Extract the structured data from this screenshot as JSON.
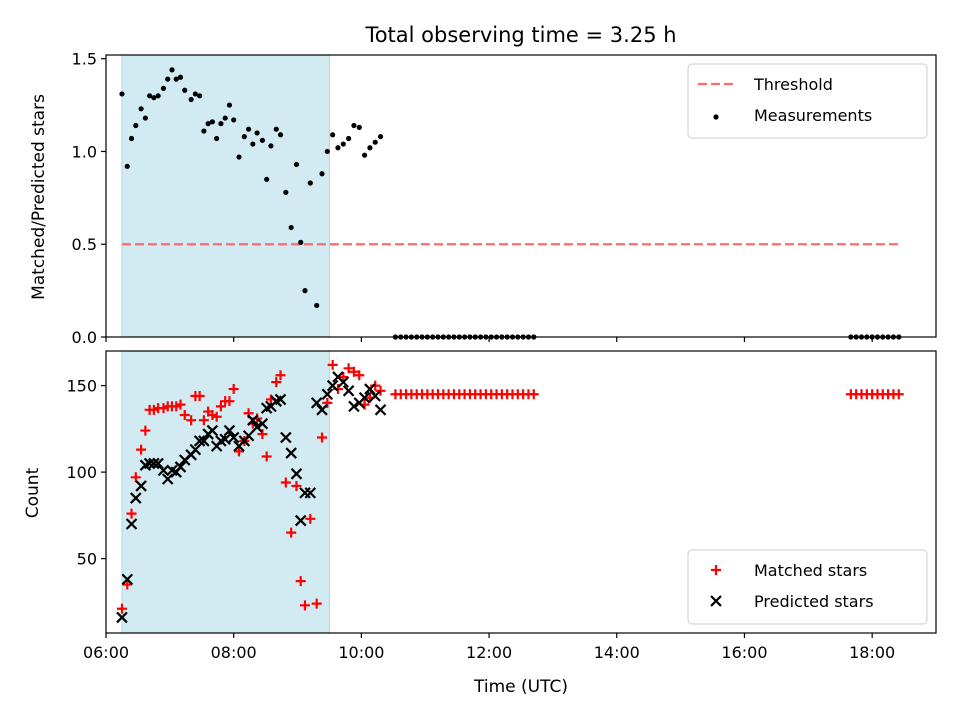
{
  "figure": {
    "title": "Total observing time = 3.25 h"
  },
  "chart_data": [
    {
      "type": "scatter",
      "ylabel": "Matched/Predicted stars",
      "xlim": [
        "06:00",
        "19:00"
      ],
      "ylim": [
        0,
        1.52
      ],
      "yticks": [
        "0.0",
        "0.5",
        "1.0",
        "1.5"
      ],
      "ytick_values": [
        0,
        0.5,
        1.0,
        1.5
      ],
      "shaded_span": [
        "06:15",
        "09:30"
      ],
      "shaded_color": "#add8e6",
      "threshold": {
        "name": "Threshold",
        "value": 0.5,
        "x_range": [
          "06:15",
          "18:25"
        ],
        "color": "#ff6b6b"
      },
      "legend_position": "top-right",
      "series": [
        {
          "name": "Measurements",
          "color": "#000000",
          "marker": "dot",
          "points": [
            [
              "06:15",
              1.31
            ],
            [
              "06:20",
              0.92
            ],
            [
              "06:24",
              1.07
            ],
            [
              "06:28",
              1.14
            ],
            [
              "06:33",
              1.23
            ],
            [
              "06:37",
              1.18
            ],
            [
              "06:41",
              1.3
            ],
            [
              "06:45",
              1.29
            ],
            [
              "06:49",
              1.3
            ],
            [
              "06:54",
              1.34
            ],
            [
              "06:58",
              1.39
            ],
            [
              "07:02",
              1.44
            ],
            [
              "07:06",
              1.39
            ],
            [
              "07:10",
              1.4
            ],
            [
              "07:14",
              1.33
            ],
            [
              "07:20",
              1.28
            ],
            [
              "07:24",
              1.31
            ],
            [
              "07:28",
              1.3
            ],
            [
              "07:32",
              1.11
            ],
            [
              "07:36",
              1.15
            ],
            [
              "07:40",
              1.16
            ],
            [
              "07:44",
              1.07
            ],
            [
              "07:48",
              1.15
            ],
            [
              "07:52",
              1.18
            ],
            [
              "07:56",
              1.25
            ],
            [
              "08:00",
              1.17
            ],
            [
              "08:05",
              0.97
            ],
            [
              "08:10",
              1.08
            ],
            [
              "08:14",
              1.12
            ],
            [
              "08:18",
              1.04
            ],
            [
              "08:22",
              1.1
            ],
            [
              "08:27",
              1.06
            ],
            [
              "08:31",
              0.85
            ],
            [
              "08:35",
              1.03
            ],
            [
              "08:40",
              1.12
            ],
            [
              "08:44",
              1.09
            ],
            [
              "08:49",
              0.78
            ],
            [
              "08:54",
              0.59
            ],
            [
              "08:59",
              0.93
            ],
            [
              "09:03",
              0.51
            ],
            [
              "09:07",
              0.25
            ],
            [
              "09:12",
              0.83
            ],
            [
              "09:18",
              0.17
            ],
            [
              "09:23",
              0.88
            ],
            [
              "09:28",
              1.0
            ],
            [
              "09:33",
              1.09
            ],
            [
              "09:38",
              1.02
            ],
            [
              "09:43",
              1.04
            ],
            [
              "09:48",
              1.07
            ],
            [
              "09:53",
              1.14
            ],
            [
              "09:58",
              1.13
            ],
            [
              "10:03",
              0.98
            ],
            [
              "10:08",
              1.02
            ],
            [
              "10:13",
              1.05
            ],
            [
              "10:18",
              1.08
            ],
            [
              "10:32",
              0
            ],
            [
              "10:37",
              0
            ],
            [
              "10:42",
              0
            ],
            [
              "10:47",
              0
            ],
            [
              "10:52",
              0
            ],
            [
              "10:57",
              0
            ],
            [
              "11:02",
              0
            ],
            [
              "11:07",
              0
            ],
            [
              "11:12",
              0
            ],
            [
              "11:17",
              0
            ],
            [
              "11:22",
              0
            ],
            [
              "11:27",
              0
            ],
            [
              "11:32",
              0
            ],
            [
              "11:37",
              0
            ],
            [
              "11:42",
              0
            ],
            [
              "11:47",
              0
            ],
            [
              "11:52",
              0
            ],
            [
              "11:57",
              0
            ],
            [
              "12:02",
              0
            ],
            [
              "12:07",
              0
            ],
            [
              "12:12",
              0
            ],
            [
              "12:17",
              0
            ],
            [
              "12:22",
              0
            ],
            [
              "12:27",
              0
            ],
            [
              "12:32",
              0
            ],
            [
              "12:37",
              0
            ],
            [
              "12:42",
              0
            ],
            [
              "17:40",
              0
            ],
            [
              "17:45",
              0
            ],
            [
              "17:50",
              0
            ],
            [
              "17:55",
              0
            ],
            [
              "18:00",
              0
            ],
            [
              "18:05",
              0
            ],
            [
              "18:10",
              0
            ],
            [
              "18:15",
              0
            ],
            [
              "18:20",
              0
            ],
            [
              "18:25",
              0
            ]
          ]
        }
      ]
    },
    {
      "type": "scatter",
      "xlabel": "Time (UTC)",
      "ylabel": "Count",
      "xlim": [
        "06:00",
        "19:00"
      ],
      "ylim": [
        7,
        170
      ],
      "xticks": [
        "06:00",
        "08:00",
        "10:00",
        "12:00",
        "14:00",
        "16:00",
        "18:00"
      ],
      "yticks": [
        "50",
        "100",
        "150"
      ],
      "ytick_values": [
        50,
        100,
        150
      ],
      "shaded_span": [
        "06:15",
        "09:30"
      ],
      "shaded_color": "#add8e6",
      "legend_position": "bottom-right",
      "series": [
        {
          "name": "Matched stars",
          "color": "#ff0000",
          "marker": "plus",
          "points": [
            [
              "06:15",
              21
            ],
            [
              "06:20",
              35
            ],
            [
              "06:24",
              76
            ],
            [
              "06:28",
              97
            ],
            [
              "06:33",
              113
            ],
            [
              "06:37",
              124
            ],
            [
              "06:41",
              136
            ],
            [
              "06:45",
              136
            ],
            [
              "06:49",
              137
            ],
            [
              "06:54",
              137
            ],
            [
              "06:58",
              138
            ],
            [
              "07:02",
              138
            ],
            [
              "07:06",
              138
            ],
            [
              "07:10",
              139
            ],
            [
              "07:14",
              133
            ],
            [
              "07:20",
              130
            ],
            [
              "07:24",
              144
            ],
            [
              "07:28",
              144
            ],
            [
              "07:32",
              130
            ],
            [
              "07:36",
              135
            ],
            [
              "07:40",
              133
            ],
            [
              "07:44",
              132
            ],
            [
              "07:48",
              138
            ],
            [
              "07:52",
              141
            ],
            [
              "07:56",
              141
            ],
            [
              "08:00",
              148
            ],
            [
              "08:05",
              112
            ],
            [
              "08:10",
              118
            ],
            [
              "08:14",
              134
            ],
            [
              "08:18",
              128
            ],
            [
              "08:22",
              131
            ],
            [
              "08:27",
              122
            ],
            [
              "08:31",
              109
            ],
            [
              "08:35",
              142
            ],
            [
              "08:40",
              152
            ],
            [
              "08:44",
              156
            ],
            [
              "08:49",
              94
            ],
            [
              "08:54",
              65
            ],
            [
              "08:59",
              92
            ],
            [
              "09:03",
              37
            ],
            [
              "09:07",
              23
            ],
            [
              "09:12",
              73
            ],
            [
              "09:18",
              24
            ],
            [
              "09:23",
              120
            ],
            [
              "09:28",
              140
            ],
            [
              "09:33",
              162
            ],
            [
              "09:38",
              148
            ],
            [
              "09:43",
              155
            ],
            [
              "09:48",
              160
            ],
            [
              "09:53",
              158
            ],
            [
              "09:58",
              156
            ],
            [
              "10:03",
              139
            ],
            [
              "10:08",
              143
            ],
            [
              "10:13",
              150
            ],
            [
              "10:18",
              147
            ],
            [
              "10:32",
              145
            ],
            [
              "10:37",
              145
            ],
            [
              "10:42",
              145
            ],
            [
              "10:47",
              145
            ],
            [
              "10:52",
              145
            ],
            [
              "10:57",
              145
            ],
            [
              "11:02",
              145
            ],
            [
              "11:07",
              145
            ],
            [
              "11:12",
              145
            ],
            [
              "11:17",
              145
            ],
            [
              "11:22",
              145
            ],
            [
              "11:27",
              145
            ],
            [
              "11:32",
              145
            ],
            [
              "11:37",
              145
            ],
            [
              "11:42",
              145
            ],
            [
              "11:47",
              145
            ],
            [
              "11:52",
              145
            ],
            [
              "11:57",
              145
            ],
            [
              "12:02",
              145
            ],
            [
              "12:07",
              145
            ],
            [
              "12:12",
              145
            ],
            [
              "12:17",
              145
            ],
            [
              "12:22",
              145
            ],
            [
              "12:27",
              145
            ],
            [
              "12:32",
              145
            ],
            [
              "12:37",
              145
            ],
            [
              "12:42",
              145
            ],
            [
              "17:40",
              145
            ],
            [
              "17:45",
              145
            ],
            [
              "17:50",
              145
            ],
            [
              "17:55",
              145
            ],
            [
              "18:00",
              145
            ],
            [
              "18:05",
              145
            ],
            [
              "18:10",
              145
            ],
            [
              "18:15",
              145
            ],
            [
              "18:20",
              145
            ],
            [
              "18:25",
              145
            ]
          ]
        },
        {
          "name": "Predicted stars",
          "color": "#000000",
          "marker": "x",
          "points": [
            [
              "06:15",
              16
            ],
            [
              "06:20",
              38
            ],
            [
              "06:24",
              70
            ],
            [
              "06:28",
              85
            ],
            [
              "06:33",
              92
            ],
            [
              "06:37",
              104
            ],
            [
              "06:41",
              105
            ],
            [
              "06:45",
              105
            ],
            [
              "06:49",
              105
            ],
            [
              "06:54",
              101
            ],
            [
              "06:58",
              96
            ],
            [
              "07:02",
              101
            ],
            [
              "07:06",
              100
            ],
            [
              "07:10",
              103
            ],
            [
              "07:14",
              107
            ],
            [
              "07:20",
              110
            ],
            [
              "07:24",
              113
            ],
            [
              "07:28",
              118
            ],
            [
              "07:32",
              118
            ],
            [
              "07:36",
              122
            ],
            [
              "07:40",
              124
            ],
            [
              "07:44",
              115
            ],
            [
              "07:48",
              118
            ],
            [
              "07:52",
              119
            ],
            [
              "07:56",
              124
            ],
            [
              "08:00",
              120
            ],
            [
              "08:05",
              115
            ],
            [
              "08:10",
              118
            ],
            [
              "08:14",
              121
            ],
            [
              "08:18",
              130
            ],
            [
              "08:22",
              126
            ],
            [
              "08:27",
              128
            ],
            [
              "08:31",
              137
            ],
            [
              "08:35",
              138
            ],
            [
              "08:40",
              141
            ],
            [
              "08:44",
              142
            ],
            [
              "08:49",
              120
            ],
            [
              "08:54",
              111
            ],
            [
              "08:59",
              99
            ],
            [
              "09:03",
              72
            ],
            [
              "09:07",
              88
            ],
            [
              "09:12",
              88
            ],
            [
              "09:18",
              140
            ],
            [
              "09:23",
              136
            ],
            [
              "09:28",
              145
            ],
            [
              "09:33",
              150
            ],
            [
              "09:38",
              155
            ],
            [
              "09:43",
              152
            ],
            [
              "09:48",
              147
            ],
            [
              "09:53",
              138
            ],
            [
              "09:58",
              140
            ],
            [
              "10:03",
              143
            ],
            [
              "10:08",
              148
            ],
            [
              "10:13",
              144
            ],
            [
              "10:18",
              136
            ]
          ]
        }
      ]
    }
  ]
}
